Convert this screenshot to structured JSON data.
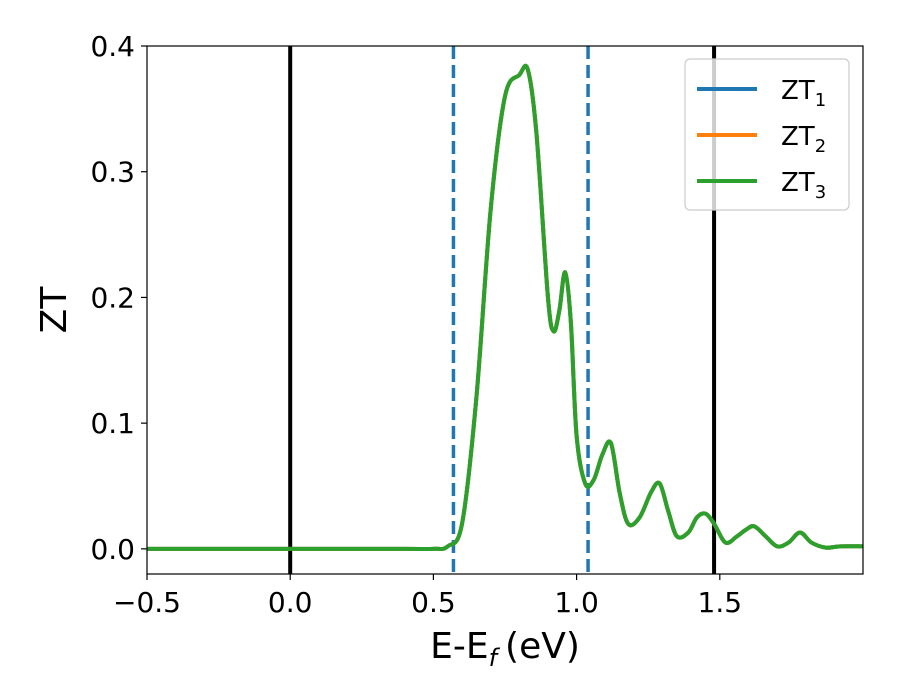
{
  "chart_data": {
    "type": "line",
    "xlabel": "E-E",
    "xlabel_sub": "f",
    "xlabel_unit": "(eV)",
    "ylabel": "ZT",
    "xlim": [
      -0.5,
      2.0
    ],
    "ylim": [
      -0.02,
      0.4
    ],
    "xticks": [
      -0.5,
      0.0,
      0.5,
      1.0,
      1.5
    ],
    "xtick_labels": [
      "−0.5",
      "0.0",
      "0.5",
      "1.0",
      "1.5"
    ],
    "yticks": [
      0.0,
      0.1,
      0.2,
      0.3,
      0.4
    ],
    "ytick_labels": [
      "0.0",
      "0.1",
      "0.2",
      "0.3",
      "0.4"
    ],
    "grid": false,
    "legend_position": "top-right",
    "vertical_lines": [
      {
        "x": 0.0,
        "style": "solid",
        "color": "#000000"
      },
      {
        "x": 1.48,
        "style": "solid",
        "color": "#000000"
      },
      {
        "x": 0.57,
        "style": "dashed",
        "color": "#1f77b4"
      },
      {
        "x": 1.04,
        "style": "dashed",
        "color": "#1f77b4"
      }
    ],
    "series": [
      {
        "name": "ZT",
        "name_sub": "1",
        "color": "#1f77b4",
        "x": [
          -0.5,
          0.0,
          0.4,
          0.5,
          0.55,
          0.6,
          0.65,
          0.7,
          0.75,
          0.8,
          0.83,
          0.86,
          0.9,
          0.92,
          0.94,
          0.96,
          0.98,
          1.0,
          1.03,
          1.06,
          1.09,
          1.12,
          1.15,
          1.18,
          1.22,
          1.26,
          1.29,
          1.32,
          1.35,
          1.39,
          1.42,
          1.45,
          1.48,
          1.52,
          1.56,
          1.59,
          1.62,
          1.66,
          1.7,
          1.74,
          1.78,
          1.82,
          1.87,
          1.92,
          2.0
        ],
        "y": [
          0.0,
          0.0,
          0.0,
          0.0,
          0.002,
          0.02,
          0.12,
          0.27,
          0.36,
          0.377,
          0.381,
          0.33,
          0.2,
          0.173,
          0.19,
          0.22,
          0.18,
          0.09,
          0.052,
          0.055,
          0.075,
          0.084,
          0.045,
          0.02,
          0.025,
          0.045,
          0.052,
          0.03,
          0.01,
          0.013,
          0.025,
          0.028,
          0.02,
          0.005,
          0.01,
          0.015,
          0.018,
          0.01,
          0.002,
          0.005,
          0.013,
          0.005,
          0.001,
          0.002,
          0.002
        ]
      },
      {
        "name": "ZT",
        "name_sub": "2",
        "color": "#ff7f0e",
        "x": [
          -0.5,
          0.0,
          0.4,
          0.5,
          0.55,
          0.6,
          0.65,
          0.7,
          0.75,
          0.8,
          0.83,
          0.86,
          0.9,
          0.92,
          0.94,
          0.96,
          0.98,
          1.0,
          1.03,
          1.06,
          1.09,
          1.12,
          1.15,
          1.18,
          1.22,
          1.26,
          1.29,
          1.32,
          1.35,
          1.39,
          1.42,
          1.45,
          1.48,
          1.52,
          1.56,
          1.59,
          1.62,
          1.66,
          1.7,
          1.74,
          1.78,
          1.82,
          1.87,
          1.92,
          2.0
        ],
        "y": [
          0.0,
          0.0,
          0.0,
          0.0,
          0.002,
          0.02,
          0.12,
          0.27,
          0.36,
          0.377,
          0.381,
          0.33,
          0.2,
          0.173,
          0.19,
          0.22,
          0.18,
          0.09,
          0.052,
          0.055,
          0.075,
          0.084,
          0.045,
          0.02,
          0.025,
          0.045,
          0.052,
          0.03,
          0.01,
          0.013,
          0.025,
          0.028,
          0.02,
          0.005,
          0.01,
          0.015,
          0.018,
          0.01,
          0.002,
          0.005,
          0.013,
          0.005,
          0.001,
          0.002,
          0.002
        ]
      },
      {
        "name": "ZT",
        "name_sub": "3",
        "color": "#2ca02c",
        "x": [
          -0.5,
          0.0,
          0.4,
          0.5,
          0.55,
          0.6,
          0.65,
          0.7,
          0.75,
          0.8,
          0.83,
          0.86,
          0.9,
          0.92,
          0.94,
          0.96,
          0.98,
          1.0,
          1.03,
          1.06,
          1.09,
          1.12,
          1.15,
          1.18,
          1.22,
          1.26,
          1.29,
          1.32,
          1.35,
          1.39,
          1.42,
          1.45,
          1.48,
          1.52,
          1.56,
          1.59,
          1.62,
          1.66,
          1.7,
          1.74,
          1.78,
          1.82,
          1.87,
          1.92,
          2.0
        ],
        "y": [
          0.0,
          0.0,
          0.0,
          0.0,
          0.002,
          0.02,
          0.12,
          0.27,
          0.36,
          0.377,
          0.381,
          0.33,
          0.2,
          0.173,
          0.19,
          0.22,
          0.18,
          0.09,
          0.052,
          0.055,
          0.075,
          0.084,
          0.045,
          0.02,
          0.025,
          0.045,
          0.052,
          0.03,
          0.01,
          0.013,
          0.025,
          0.028,
          0.02,
          0.005,
          0.01,
          0.015,
          0.018,
          0.01,
          0.002,
          0.005,
          0.013,
          0.005,
          0.001,
          0.002,
          0.002
        ]
      }
    ]
  }
}
